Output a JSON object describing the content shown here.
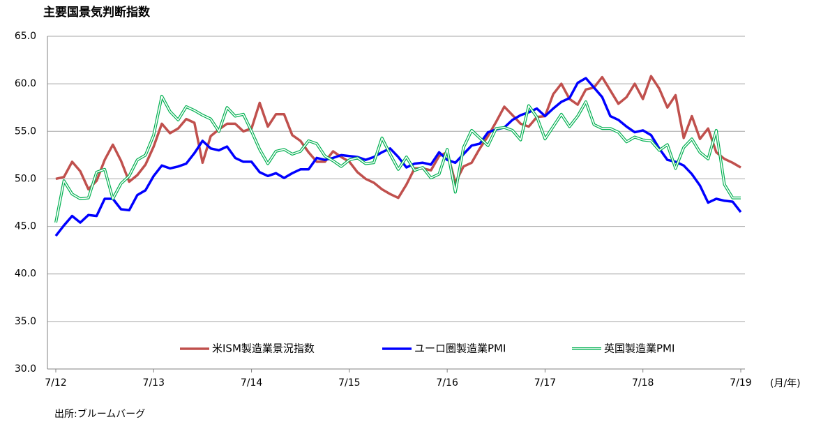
{
  "chart_data": {
    "type": "line",
    "title": "主要国景気判断指数",
    "x_label": "(月/年)",
    "source": "出所:ブルームバーグ",
    "categories": [
      "7/12",
      null,
      null,
      null,
      null,
      null,
      null,
      null,
      null,
      null,
      null,
      null,
      "7/13",
      null,
      null,
      null,
      null,
      null,
      null,
      null,
      null,
      null,
      null,
      null,
      "7/14",
      null,
      null,
      null,
      null,
      null,
      null,
      null,
      null,
      null,
      null,
      null,
      "7/15",
      null,
      null,
      null,
      null,
      null,
      null,
      null,
      null,
      null,
      null,
      null,
      "7/16",
      null,
      null,
      null,
      null,
      null,
      null,
      null,
      null,
      null,
      null,
      null,
      "7/17",
      null,
      null,
      null,
      null,
      null,
      null,
      null,
      null,
      null,
      null,
      null,
      "7/18",
      null,
      null,
      null,
      null,
      null,
      null,
      null,
      null,
      null,
      null,
      null,
      "7/19"
    ],
    "ylim": [
      30,
      65
    ],
    "yticks": [
      {
        "value": 30,
        "label": "30.0"
      },
      {
        "value": 35,
        "label": "35.0"
      },
      {
        "value": 40,
        "label": "40.0"
      },
      {
        "value": 45,
        "label": "45.0"
      },
      {
        "value": 50,
        "label": "50.0"
      },
      {
        "value": 55,
        "label": "55.0"
      },
      {
        "value": 60,
        "label": "60.0"
      },
      {
        "value": 65,
        "label": "65.0"
      }
    ],
    "grid": true,
    "legend": "bottom",
    "series": [
      {
        "name": "米ISM製造業景況指数",
        "color": "#c0504d",
        "style": "solid",
        "values": [
          50.0,
          50.2,
          51.8,
          50.8,
          48.9,
          49.8,
          52.0,
          53.6,
          51.9,
          49.7,
          50.4,
          51.5,
          53.4,
          55.8,
          54.8,
          55.3,
          56.3,
          55.9,
          51.7,
          54.5,
          55.2,
          55.8,
          55.8,
          55.0,
          55.3,
          58.0,
          55.5,
          56.8,
          56.8,
          54.6,
          54.0,
          52.8,
          51.8,
          51.8,
          52.9,
          52.3,
          51.8,
          50.7,
          50.0,
          49.6,
          48.9,
          48.4,
          48.0,
          49.4,
          51.1,
          51.1,
          50.9,
          52.4,
          52.8,
          49.6,
          51.3,
          51.7,
          53.2,
          54.5,
          56.0,
          57.6,
          56.7,
          55.8,
          55.5,
          56.5,
          56.6,
          58.9,
          60.0,
          58.4,
          57.8,
          59.4,
          59.6,
          60.7,
          59.3,
          57.9,
          58.6,
          60.0,
          58.4,
          60.8,
          59.5,
          57.5,
          58.8,
          54.3,
          56.6,
          54.2,
          55.3,
          52.8,
          52.1,
          51.7,
          51.2
        ]
      },
      {
        "name": "ユーロ圏製造業PMI",
        "color": "#0000ff",
        "style": "solid",
        "values": [
          44.0,
          45.1,
          46.1,
          45.4,
          46.2,
          46.1,
          47.9,
          47.9,
          46.8,
          46.7,
          48.3,
          48.8,
          50.3,
          51.4,
          51.1,
          51.3,
          51.6,
          52.7,
          54.0,
          53.2,
          53.0,
          53.4,
          52.2,
          51.8,
          51.8,
          50.7,
          50.3,
          50.6,
          50.1,
          50.6,
          51.0,
          51.0,
          52.2,
          52.0,
          52.2,
          52.5,
          52.4,
          52.3,
          52.0,
          52.3,
          52.8,
          53.2,
          52.3,
          51.2,
          51.6,
          51.7,
          51.5,
          52.8,
          52.0,
          51.7,
          52.6,
          53.5,
          53.7,
          54.9,
          55.2,
          55.4,
          56.2,
          56.7,
          57.0,
          57.4,
          56.6,
          57.4,
          58.1,
          58.5,
          60.1,
          60.6,
          59.6,
          58.6,
          56.6,
          56.2,
          55.5,
          54.9,
          55.1,
          54.6,
          53.2,
          52.0,
          51.8,
          51.4,
          50.5,
          49.3,
          47.5,
          47.9,
          47.7,
          47.6,
          46.5
        ]
      },
      {
        "name": "英国製造業PMI",
        "color": "#00b050",
        "style": "double",
        "values": [
          45.4,
          49.8,
          48.4,
          47.9,
          48.0,
          50.7,
          51.0,
          47.9,
          49.5,
          50.3,
          52.0,
          52.5,
          54.6,
          58.7,
          57.1,
          56.2,
          57.6,
          57.2,
          56.7,
          56.3,
          55.0,
          57.5,
          56.6,
          56.8,
          55.0,
          53.1,
          51.6,
          52.9,
          53.1,
          52.6,
          52.9,
          54.0,
          53.7,
          52.4,
          51.9,
          51.3,
          52.0,
          52.2,
          51.6,
          51.7,
          54.3,
          52.6,
          51.0,
          52.3,
          50.9,
          51.2,
          50.1,
          50.5,
          53.1,
          48.6,
          53.3,
          55.1,
          54.3,
          53.5,
          55.3,
          55.4,
          55.1,
          54.1,
          57.7,
          56.5,
          54.2,
          55.5,
          56.8,
          55.5,
          56.6,
          58.1,
          55.7,
          55.3,
          55.3,
          54.9,
          53.9,
          54.4,
          54.1,
          54.0,
          53.0,
          53.6,
          51.1,
          53.3,
          54.2,
          52.8,
          52.1,
          55.1,
          49.4,
          48.0,
          48.0
        ]
      }
    ]
  }
}
